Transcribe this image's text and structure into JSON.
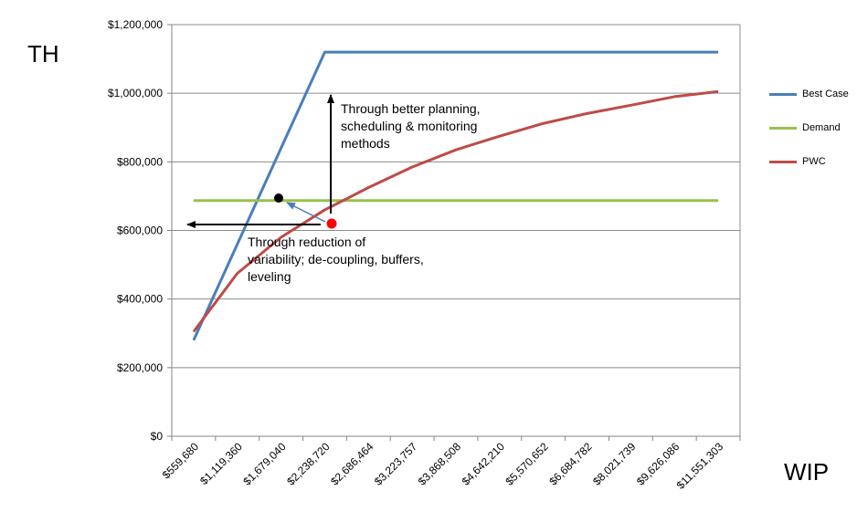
{
  "labels": {
    "y_title": "TH",
    "x_title": "WIP"
  },
  "chart_data": {
    "type": "line",
    "title": "",
    "xlabel": "WIP",
    "ylabel": "TH",
    "categories": [
      "$559,680",
      "$1,119,360",
      "$1,679,040",
      "$2,238,720",
      "$2,686,464",
      "$3,223,757",
      "$3,868,508",
      "$4,642,210",
      "$5,570,652",
      "$6,684,782",
      "$8,021,739",
      "$9,626,086",
      "$11,551,303"
    ],
    "ylim": [
      0,
      1200000
    ],
    "yticks": [
      0,
      200000,
      400000,
      600000,
      800000,
      1000000,
      1200000
    ],
    "ytick_labels": [
      "$0",
      "$200,000",
      "$400,000",
      "$600,000",
      "$800,000",
      "$1,000,000",
      "$1,200,000"
    ],
    "grid": true,
    "legend": "right",
    "series": [
      {
        "name": "Best Case",
        "color": "#4a7ebb",
        "values": [
          280000,
          560000,
          840000,
          1120000,
          1120000,
          1120000,
          1120000,
          1120000,
          1120000,
          1120000,
          1120000,
          1120000,
          1120000
        ]
      },
      {
        "name": "Demand",
        "color": "#98c14c",
        "values": [
          687000,
          687000,
          687000,
          687000,
          687000,
          687000,
          687000,
          687000,
          687000,
          687000,
          687000,
          687000,
          687000
        ]
      },
      {
        "name": "PWC",
        "color": "#be4b48",
        "values": [
          305000,
          475000,
          580000,
          660000,
          725000,
          785000,
          835000,
          875000,
          912000,
          941000,
          965000,
          990000,
          1005000
        ]
      }
    ],
    "annotations": [
      {
        "text": "Through better planning,\nscheduling & monitoring\nmethods"
      },
      {
        "text": "Through reduction of\nvariability; de-coupling, buffers,\nleveling"
      }
    ]
  }
}
